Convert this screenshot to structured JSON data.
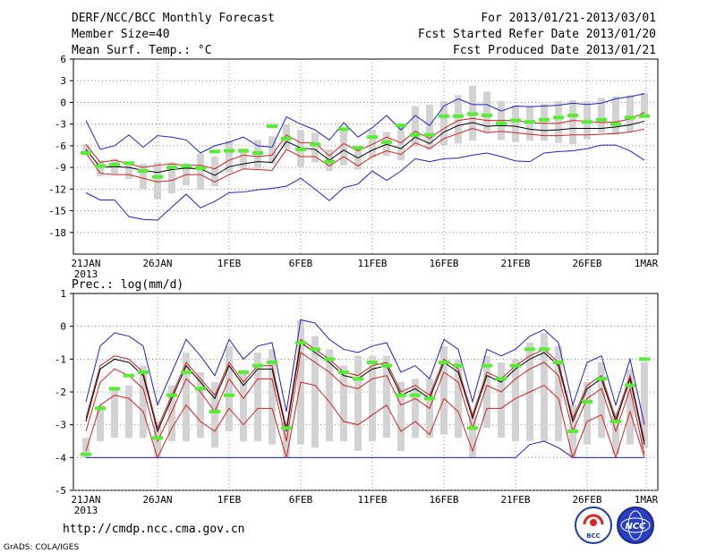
{
  "header": {
    "left": [
      "DERF/NCC/BCC Monthly Forecast",
      "Member Size=40",
      "Mean Surf. Temp.: °C"
    ],
    "right": [
      "For 2013/01/21-2013/03/01",
      "Fcst Started Refer Date 2013/01/20",
      "Fcst Produced Date 2013/01/21"
    ]
  },
  "footer": {
    "url": "http://cmdp.ncc.cma.gov.cn",
    "credit": "GrADS: COLA/IGES",
    "logo1": "BCC",
    "logo2": "NCC"
  },
  "colors": {
    "box": "#d3d3d3",
    "mean": "#000000",
    "inner": "#cc2222",
    "outer": "#1f22bb",
    "obs": "#55ee33"
  },
  "chart_data": [
    {
      "type": "ensemble-box-line",
      "title": "Mean Surf. Temp.: °C",
      "ylabel": "°C",
      "ylim": [
        -21,
        6
      ],
      "yticks": [
        6,
        3,
        0,
        -3,
        -6,
        -9,
        -12,
        -15,
        -18
      ],
      "x_tick_labels": [
        "21JAN",
        "26JAN",
        "1FEB",
        "6FEB",
        "11FEB",
        "16FEB",
        "21FEB",
        "26FEB",
        "1MAR"
      ],
      "x_year_label": "2013",
      "days": 40,
      "series": [
        {
          "name": "ensemble-mean",
          "values": [
            -6.5,
            -9,
            -8.9,
            -9,
            -9.4,
            -9.7,
            -9.3,
            -9.1,
            -9.2,
            -10.1,
            -8.9,
            -8.5,
            -8.2,
            -8.3,
            -5.4,
            -6.3,
            -6.5,
            -8,
            -6.6,
            -7.7,
            -6.6,
            -5.8,
            -6.4,
            -4.8,
            -5.7,
            -4.1,
            -3.2,
            -2.8,
            -3.3,
            -3.2,
            -3.3,
            -3.7,
            -3.9,
            -3.8,
            -3.6,
            -3.6,
            -3.6,
            -3.4,
            -3.1,
            -2.6
          ]
        },
        {
          "name": "inner-upper",
          "values": [
            -5.8,
            -8.3,
            -8,
            -8.5,
            -9,
            -8.7,
            -8.5,
            -8.7,
            -8.7,
            -9.2,
            -8,
            -7.3,
            -7.5,
            -7.3,
            -4.5,
            -5.6,
            -5.6,
            -7.4,
            -5.7,
            -6.7,
            -5.8,
            -4.8,
            -5.6,
            -4,
            -5,
            -3.6,
            -2.5,
            -2.2,
            -2.5,
            -2.5,
            -2.5,
            -2.8,
            -2.9,
            -2.9,
            -2.5,
            -2.6,
            -2.8,
            -2.7,
            -2.3,
            -1.4
          ]
        },
        {
          "name": "inner-lower",
          "values": [
            -7,
            -9.8,
            -10,
            -10,
            -10.5,
            -11,
            -10.8,
            -10,
            -10,
            -11,
            -10,
            -9.2,
            -9.3,
            -9.4,
            -6.5,
            -7.5,
            -7.5,
            -8.8,
            -7.5,
            -8.8,
            -7.5,
            -6.7,
            -7.2,
            -5.6,
            -6.4,
            -5,
            -4.3,
            -3.6,
            -4.2,
            -4,
            -4.2,
            -4.4,
            -4.6,
            -4.6,
            -4.5,
            -4.5,
            -4.4,
            -4.3,
            -4.1,
            -3.7
          ]
        },
        {
          "name": "outer-upper",
          "values": [
            -2.5,
            -6.5,
            -6,
            -4.5,
            -6.2,
            -4.6,
            -4.8,
            -5.2,
            -7,
            -6,
            -5.5,
            -4.8,
            -6,
            -6.2,
            -2,
            -3,
            -3.8,
            -5.2,
            -2.8,
            -4.8,
            -3.5,
            -1.8,
            -3.8,
            -1.8,
            -3.2,
            -0.5,
            0.5,
            -0.3,
            -0.3,
            -1.2,
            -0.5,
            -0.6,
            -0.5,
            -0.4,
            -0.1,
            -0.3,
            -0.1,
            0.5,
            0.8,
            1.2
          ]
        },
        {
          "name": "outer-lower",
          "values": [
            -12.5,
            -13.5,
            -13.5,
            -15.8,
            -16.2,
            -16.3,
            -14.5,
            -12.7,
            -14.6,
            -13.7,
            -12.5,
            -12.4,
            -12.1,
            -11.9,
            -11.6,
            -10.5,
            -12,
            -13.6,
            -11.8,
            -11.3,
            -9.5,
            -10.8,
            -9.5,
            -7.8,
            -8.2,
            -7.8,
            -7.7,
            -7.3,
            -7,
            -7.5,
            -8.1,
            -8.2,
            -7,
            -6.8,
            -6.7,
            -6.4,
            -5.9,
            -5.9,
            -6.7,
            -8
          ]
        },
        {
          "name": "box-top",
          "values": [
            -5.8,
            -8,
            -7.8,
            -8.4,
            -8.5,
            -8.3,
            -8.3,
            -8.4,
            -7.1,
            -7.5,
            -5.3,
            -6.4,
            -5.2,
            -4.7,
            -3,
            -3.8,
            -4.2,
            -6.5,
            -3.7,
            -6.3,
            -3.8,
            -4.1,
            -3.2,
            -0.5,
            -0.3,
            0.2,
            1,
            2.3,
            1.5,
            0.2,
            -0.4,
            -0.5,
            -0.2,
            0.2,
            0.3,
            0.2,
            0.6,
            0.8,
            1,
            1.3
          ]
        },
        {
          "name": "box-bottom",
          "values": [
            -7,
            -10.2,
            -9.9,
            -10.6,
            -12,
            -13.4,
            -12.6,
            -11.5,
            -12.1,
            -11.6,
            -9.7,
            -9.1,
            -9.1,
            -8.5,
            -6.4,
            -8.9,
            -8.3,
            -9.5,
            -8.7,
            -9.3,
            -7.7,
            -7.4,
            -8,
            -6.1,
            -6.5,
            -5.9,
            -5.7,
            -5.3,
            -4.1,
            -5.2,
            -5.5,
            -5.3,
            -5.3,
            -5.6,
            -5.8,
            -5.1,
            -4.2,
            -4.5,
            -4.1,
            -2.1
          ]
        },
        {
          "name": "observed",
          "values": [
            -7,
            -8.8,
            -8.6,
            -8.4,
            -9.5,
            -10.3,
            -9,
            -8.8,
            -9.1,
            -6.8,
            -6.7,
            -6.7,
            -7,
            -3.3,
            -5,
            -6.5,
            -5.8,
            -8.2,
            -3.7,
            -6.3,
            -4.8,
            -5.5,
            -3.2,
            -4.5,
            -4.5,
            -1.9,
            -1.9,
            -1.6,
            -1.8,
            -2.9,
            -2.5,
            -2.7,
            -2.4,
            -2.1,
            -1.8,
            -2.7,
            -2.4,
            -3,
            -2.1,
            -1.9
          ]
        }
      ]
    },
    {
      "type": "ensemble-box-line",
      "title": "Prec.: log(mm/d)",
      "ylabel": "log(mm/d)",
      "ylim": [
        -5,
        1
      ],
      "yticks": [
        1,
        0,
        -1,
        -2,
        -3,
        -4,
        -5
      ],
      "x_tick_labels": [
        "21JAN",
        "26JAN",
        "1FEB",
        "6FEB",
        "11FEB",
        "16FEB",
        "21FEB",
        "26FEB",
        "1MAR"
      ],
      "x_year_label": "2013",
      "days": 40,
      "series": [
        {
          "name": "ensemble-mean",
          "values": [
            -2.9,
            -1.3,
            -1,
            -1.1,
            -1.5,
            -3.2,
            -2.2,
            -1.2,
            -1.7,
            -2.2,
            -1.2,
            -1.8,
            -1.3,
            -1.3,
            -3.2,
            -0.5,
            -0.8,
            -1.1,
            -1.5,
            -1.6,
            -1.3,
            -1.2,
            -2.1,
            -1.9,
            -2.2,
            -1.1,
            -1.4,
            -2.8,
            -1.5,
            -1.7,
            -1.3,
            -1,
            -0.8,
            -1.2,
            -2.9,
            -1.9,
            -1.6,
            -2.9,
            -1.6,
            -3.6
          ]
        },
        {
          "name": "inner-upper",
          "values": [
            -2.8,
            -1.2,
            -0.9,
            -1,
            -1.4,
            -3.1,
            -2.1,
            -1.1,
            -1.6,
            -2.1,
            -1.1,
            -1.7,
            -1.2,
            -1.2,
            -3.1,
            -0.4,
            -0.7,
            -1,
            -1.4,
            -1.5,
            -1.2,
            -1.1,
            -2,
            -1.8,
            -2.1,
            -1,
            -1.3,
            -2.7,
            -1.4,
            -1.6,
            -1.2,
            -0.9,
            -0.7,
            -1.1,
            -2.8,
            -1.8,
            -1.5,
            -2.8,
            -1.5,
            -3.5
          ]
        },
        {
          "name": "inner-lower",
          "values": [
            -3.2,
            -1.7,
            -1.3,
            -1.5,
            -1.9,
            -3.5,
            -2.6,
            -1.6,
            -2,
            -2.6,
            -1.6,
            -2.2,
            -1.6,
            -1.6,
            -3.5,
            -0.8,
            -1.1,
            -1.4,
            -1.8,
            -1.9,
            -1.6,
            -1.5,
            -2.4,
            -2.2,
            -2.5,
            -1.4,
            -1.7,
            -3.1,
            -1.8,
            -2,
            -1.6,
            -1.3,
            -1.1,
            -1.5,
            -3.2,
            -2.2,
            -1.9,
            -3.2,
            -1.9,
            -3.9
          ]
        },
        {
          "name": "lower-red",
          "values": [
            -3.8,
            -2.4,
            -2.1,
            -2.2,
            -2.6,
            -4,
            -3.1,
            -2.4,
            -2.9,
            -3.2,
            -2.5,
            -3,
            -2.5,
            -2.5,
            -4,
            -1.7,
            -1.8,
            -2.3,
            -2.9,
            -3,
            -2.7,
            -2.4,
            -3.2,
            -2.9,
            -3.3,
            -2.2,
            -2.6,
            -3.8,
            -2.5,
            -2.5,
            -2.2,
            -2,
            -1.8,
            -2.2,
            -4,
            -2.9,
            -2.7,
            -4,
            -2.6,
            -4
          ]
        },
        {
          "name": "outer-upper",
          "values": [
            -2.3,
            -0.6,
            -0.2,
            -0.3,
            -0.6,
            -2.4,
            -1.4,
            -0.4,
            -0.9,
            -1.5,
            -0.4,
            -1,
            -0.6,
            -0.5,
            -2.6,
            0.2,
            0.1,
            -0.4,
            -0.7,
            -0.8,
            -0.6,
            -0.5,
            -1.4,
            -1.2,
            -1.6,
            -0.4,
            -0.7,
            -2.3,
            -0.7,
            -0.9,
            -0.7,
            -0.3,
            -0.1,
            -0.5,
            -2.4,
            -1.1,
            -0.9,
            -2.4,
            -1,
            -3
          ]
        },
        {
          "name": "outer-lower",
          "values": [
            -4,
            -4,
            -4,
            -4,
            -4,
            -4,
            -4,
            -4,
            -4,
            -4,
            -4,
            -4,
            -4,
            -4,
            -4,
            -4,
            -4,
            -4,
            -4,
            -4,
            -4,
            -4,
            -4,
            -4,
            -4,
            -4,
            -4,
            -4,
            -4,
            -4,
            -4,
            -3.6,
            -3.5,
            -3.7,
            -4,
            -4,
            -4,
            -4,
            -4,
            -4
          ]
        },
        {
          "name": "box-top",
          "values": [
            -3.4,
            -2.4,
            -1.9,
            -1.8,
            -1.2,
            -2.9,
            -1.8,
            -0.8,
            -1.4,
            -1.7,
            -0.6,
            -1.4,
            -0.8,
            -0.7,
            -2.9,
            0.2,
            -0.3,
            -0.7,
            -1.2,
            -0.9,
            -0.9,
            -0.9,
            -1.7,
            -1.6,
            -1.6,
            -0.6,
            -1,
            -2.7,
            -0.9,
            -1.1,
            -1,
            -0.5,
            -0.2,
            -0.6,
            -2.4,
            -1.7,
            -1.1,
            -2.6,
            -1.3,
            -1.1
          ]
        },
        {
          "name": "box-bottom",
          "values": [
            -4,
            -3.5,
            -3.4,
            -3.4,
            -3.4,
            -4,
            -3.5,
            -3.5,
            -3.4,
            -3.7,
            -3.2,
            -3.5,
            -3.5,
            -3.6,
            -4,
            -3.6,
            -3.7,
            -3.5,
            -3.5,
            -3.8,
            -3.5,
            -3.4,
            -3.8,
            -3.4,
            -3.4,
            -3.3,
            -3.4,
            -4,
            -3.1,
            -3.4,
            -3.5,
            -3.5,
            -3.5,
            -3.5,
            -4,
            -3.6,
            -3.4,
            -3.9,
            -3.6,
            -3.7
          ]
        },
        {
          "name": "observed",
          "values": [
            -3.9,
            -2.5,
            -1.9,
            -1.5,
            -1.4,
            -3.4,
            -2.1,
            -1.4,
            -1.9,
            -2.6,
            -2.1,
            -1.4,
            -1.2,
            -1.1,
            -3.1,
            -0.5,
            -0.7,
            -1,
            -1.4,
            -1.6,
            -1.1,
            -1.2,
            -2.1,
            -2.1,
            -2.2,
            -1.1,
            -1.2,
            -3.1,
            -1.2,
            -1.6,
            -1.2,
            -0.7,
            -0.7,
            -1.1,
            -3.2,
            -2.3,
            -1.6,
            -2.9,
            -1.8,
            -1
          ]
        }
      ]
    }
  ]
}
